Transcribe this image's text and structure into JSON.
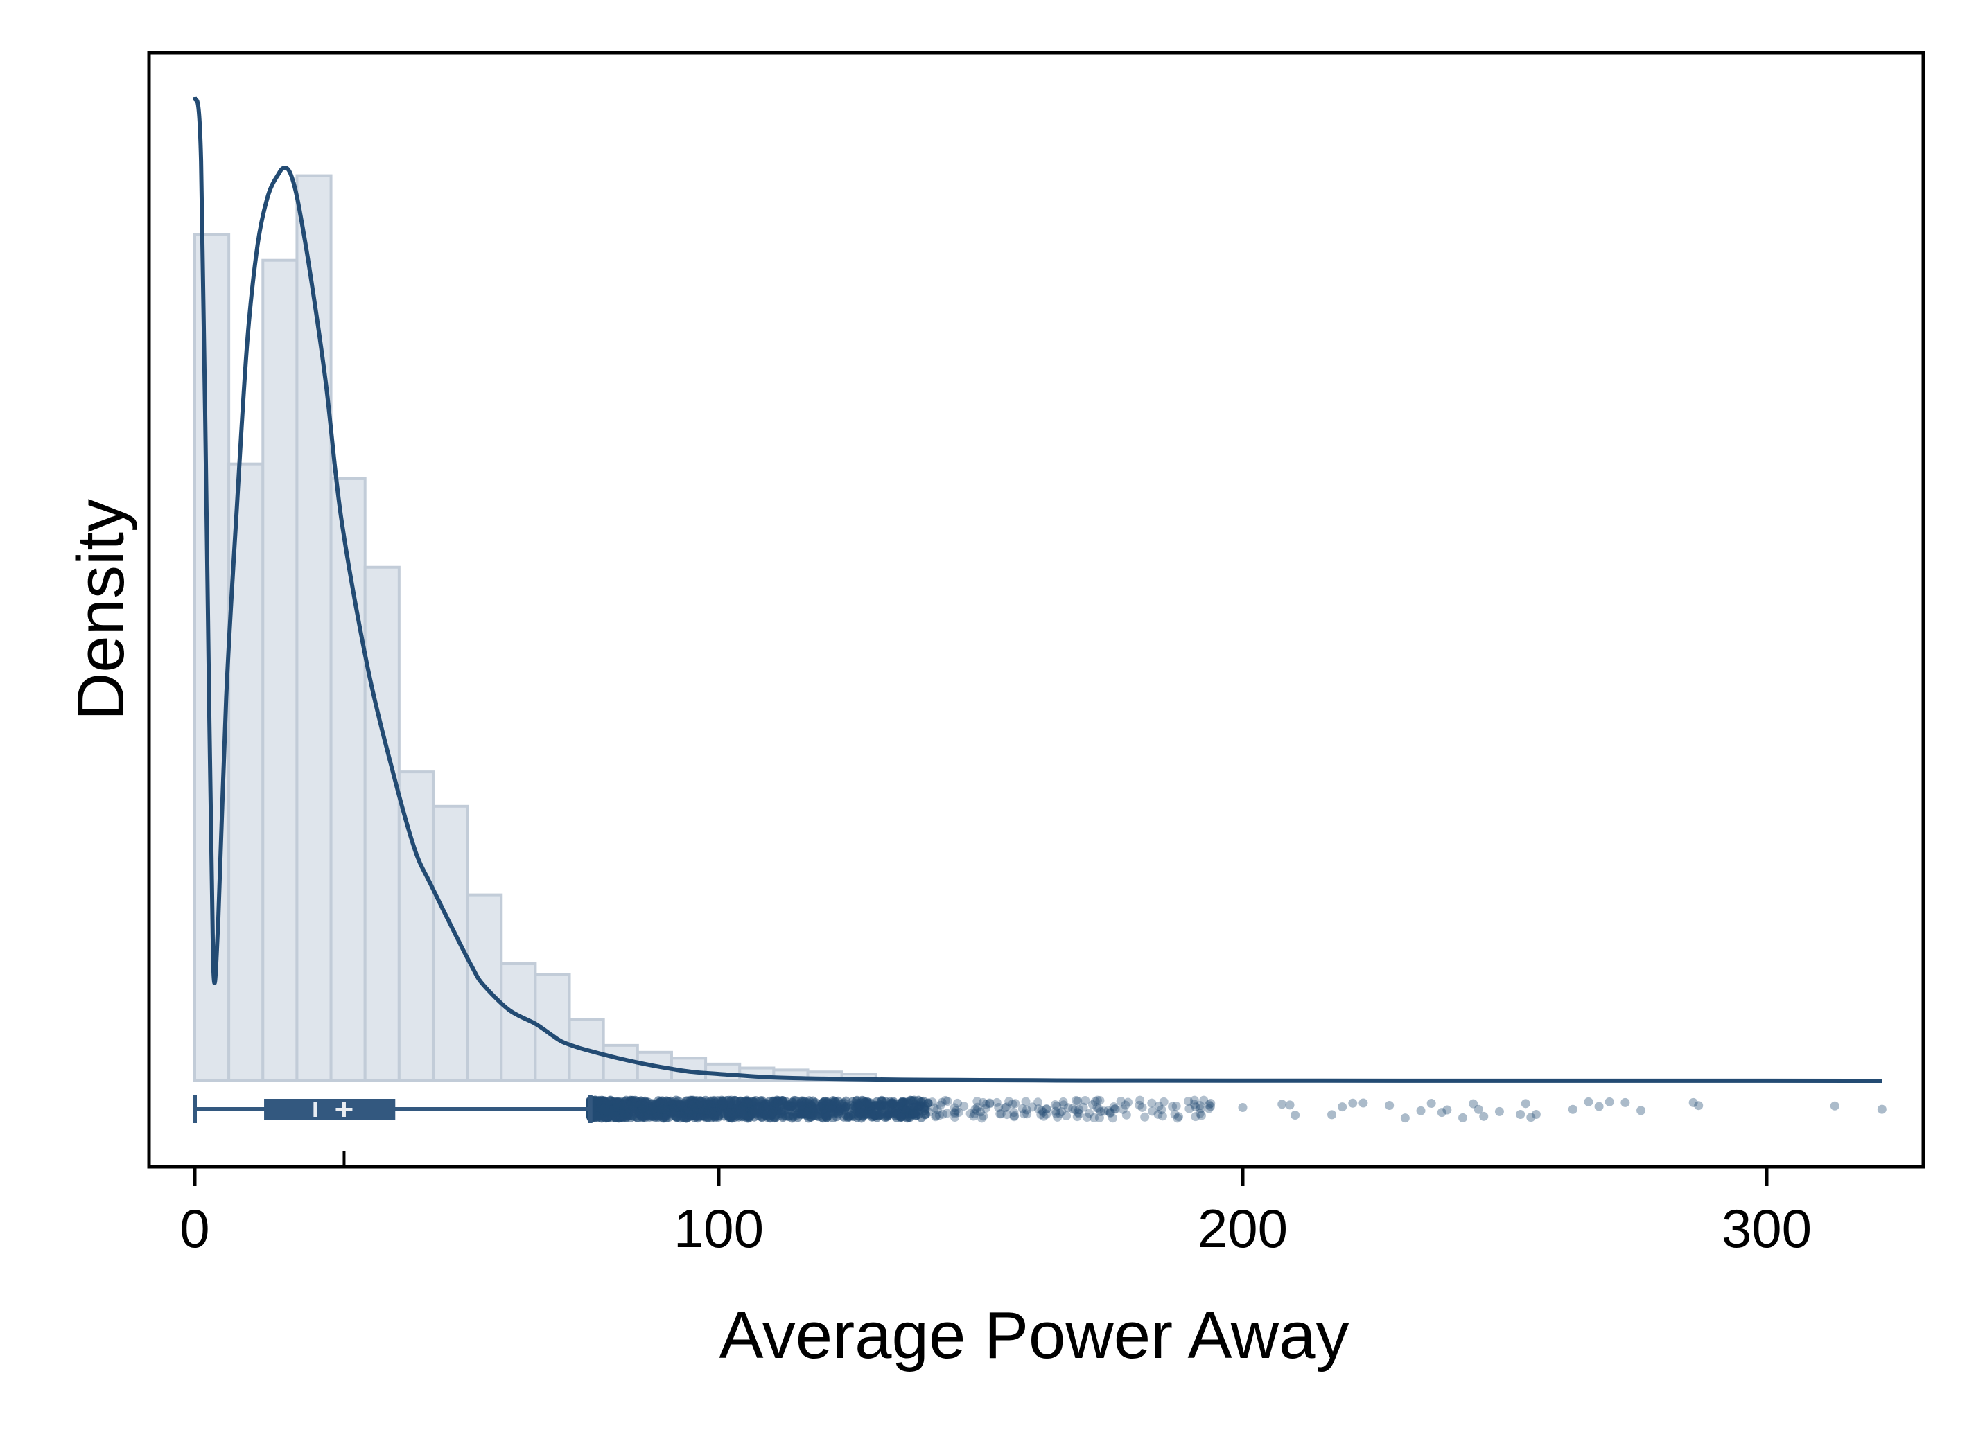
{
  "chart_data": {
    "type": "histogram",
    "title": "",
    "xlabel": "Average Power Away",
    "ylabel": "Density",
    "xlim": [
      -8,
      332
    ],
    "x_ticks": [
      0,
      100,
      200,
      300
    ],
    "x_tick_labels": [
      "0",
      "100",
      "200",
      "300"
    ],
    "y_ticks_shown": false,
    "grid": false,
    "legend": "none",
    "colors": {
      "bar_fill": "#dfe5ec",
      "bar_edge": "#c2ccd8",
      "line": "#234b73",
      "box": "#33587f",
      "points": "#234b73",
      "frame": "#000000"
    },
    "histogram": {
      "bin_width": 6.5,
      "bin_start": 0,
      "relative_heights": [
        0.86,
        0.627,
        0.834,
        0.92,
        0.612,
        0.522,
        0.314,
        0.279,
        0.189,
        0.119,
        0.108,
        0.062,
        0.036,
        0.029,
        0.023,
        0.017,
        0.013,
        0.011,
        0.009,
        0.007
      ]
    },
    "density_curve": {
      "x": [
        0,
        1.2,
        2.5,
        3.5,
        4.5,
        6,
        8,
        10,
        12,
        14,
        16,
        17,
        18,
        19,
        20,
        22,
        25,
        28,
        33,
        38,
        42,
        45,
        50,
        53,
        55,
        60,
        65,
        68,
        70,
        73,
        75,
        80,
        85,
        90,
        95,
        100,
        110,
        120,
        130,
        140,
        150,
        160,
        170,
        200,
        250,
        300,
        322
      ],
      "y": [
        1.0,
        0.935,
        0.48,
        0.12,
        0.165,
        0.39,
        0.58,
        0.75,
        0.85,
        0.9,
        0.922,
        0.928,
        0.925,
        0.91,
        0.885,
        0.822,
        0.71,
        0.57,
        0.42,
        0.31,
        0.235,
        0.2,
        0.146,
        0.115,
        0.098,
        0.072,
        0.058,
        0.047,
        0.04,
        0.034,
        0.031,
        0.024,
        0.018,
        0.013,
        0.009,
        0.007,
        0.0035,
        0.0022,
        0.0014,
        0.001,
        0.0007,
        0.0005,
        0.0003,
        0.0002,
        0.0001,
        0.0001,
        0.0
      ]
    },
    "boxplot": {
      "whisker_low": 0,
      "q1": 13.5,
      "median": 23,
      "mean": 28.5,
      "q3": 38,
      "whisker_high": 75.5
    },
    "outliers": {
      "dense_range": [
        75.5,
        140
      ],
      "medium_range": [
        140,
        195
      ],
      "sparse_points": [
        200,
        207.5,
        209,
        210,
        217,
        219,
        221,
        223,
        228,
        231,
        234,
        236,
        238,
        239,
        242,
        244,
        245,
        246,
        249,
        253,
        254,
        255,
        256,
        263,
        266,
        268,
        270,
        273,
        276,
        286,
        287,
        313,
        322
      ]
    }
  }
}
